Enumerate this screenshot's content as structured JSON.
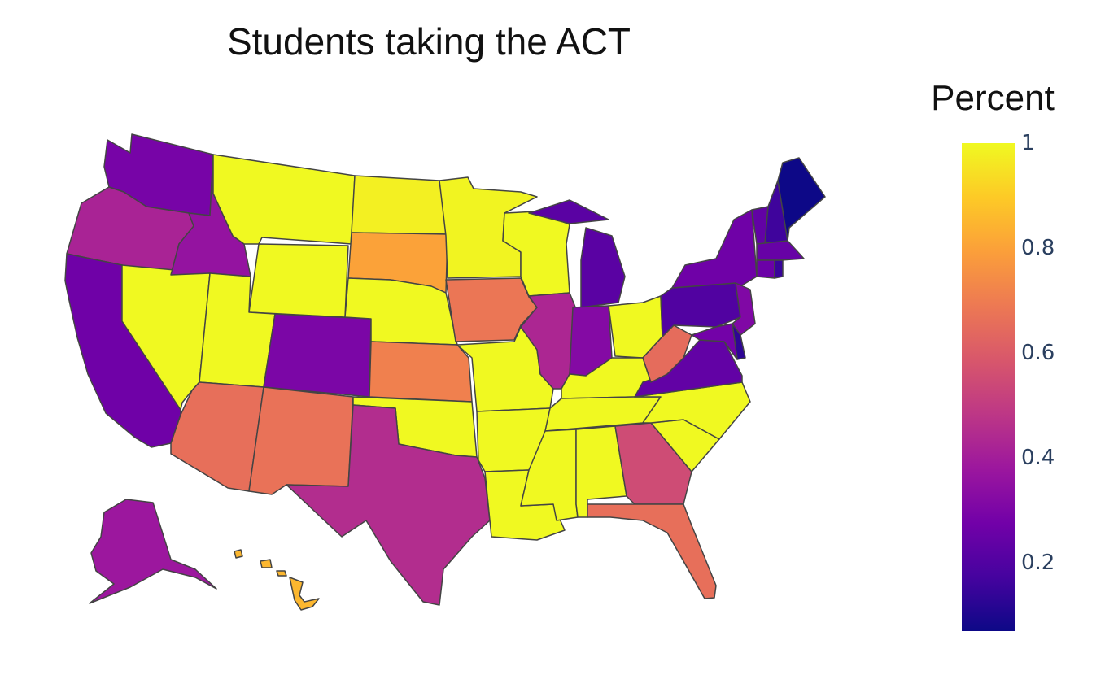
{
  "chart_data": {
    "type": "choropleth",
    "title": "Students taking the ACT",
    "colorbar": {
      "title": "Percent",
      "range": [
        0.07,
        1.0
      ],
      "ticks": [
        "0.2",
        "0.4",
        "0.6",
        "0.8",
        "1"
      ],
      "colorscale": [
        "#0d0887",
        "#46039f",
        "#7201a8",
        "#9c179e",
        "#bd3786",
        "#d8576b",
        "#ed7953",
        "#fb9f3a",
        "#fdca26",
        "#f0f921"
      ]
    },
    "states": [
      {
        "id": "WA",
        "value": 0.29
      },
      {
        "id": "OR",
        "value": 0.42
      },
      {
        "id": "CA",
        "value": 0.27
      },
      {
        "id": "NV",
        "value": 1.0
      },
      {
        "id": "ID",
        "value": 0.36
      },
      {
        "id": "MT",
        "value": 1.0
      },
      {
        "id": "WY",
        "value": 1.0
      },
      {
        "id": "UT",
        "value": 1.0
      },
      {
        "id": "AZ",
        "value": 0.66
      },
      {
        "id": "CO",
        "value": 0.3
      },
      {
        "id": "NM",
        "value": 0.67
      },
      {
        "id": "ND",
        "value": 0.98
      },
      {
        "id": "SD",
        "value": 0.8
      },
      {
        "id": "NE",
        "value": 1.0
      },
      {
        "id": "KS",
        "value": 0.71
      },
      {
        "id": "OK",
        "value": 1.0
      },
      {
        "id": "TX",
        "value": 0.45
      },
      {
        "id": "MN",
        "value": 0.99
      },
      {
        "id": "IA",
        "value": 0.68
      },
      {
        "id": "MO",
        "value": 1.0
      },
      {
        "id": "AR",
        "value": 1.0
      },
      {
        "id": "LA",
        "value": 1.0
      },
      {
        "id": "WI",
        "value": 1.0
      },
      {
        "id": "IL",
        "value": 0.43
      },
      {
        "id": "MI",
        "value": 0.22
      },
      {
        "id": "IN",
        "value": 0.32
      },
      {
        "id": "OH",
        "value": 1.0
      },
      {
        "id": "KY",
        "value": 1.0
      },
      {
        "id": "TN",
        "value": 1.0
      },
      {
        "id": "MS",
        "value": 1.0
      },
      {
        "id": "AL",
        "value": 1.0
      },
      {
        "id": "GA",
        "value": 0.55
      },
      {
        "id": "FL",
        "value": 0.66
      },
      {
        "id": "SC",
        "value": 1.0
      },
      {
        "id": "NC",
        "value": 1.0
      },
      {
        "id": "VA",
        "value": 0.24
      },
      {
        "id": "WV",
        "value": 0.65
      },
      {
        "id": "PA",
        "value": 0.2
      },
      {
        "id": "NY",
        "value": 0.27
      },
      {
        "id": "NJ",
        "value": 0.31
      },
      {
        "id": "DE",
        "value": 0.13
      },
      {
        "id": "MD",
        "value": 0.28
      },
      {
        "id": "VT",
        "value": 0.24
      },
      {
        "id": "NH",
        "value": 0.16
      },
      {
        "id": "MA",
        "value": 0.25
      },
      {
        "id": "CT",
        "value": 0.26
      },
      {
        "id": "RI",
        "value": 0.15
      },
      {
        "id": "ME",
        "value": 0.07
      },
      {
        "id": "AK",
        "value": 0.38
      },
      {
        "id": "HI",
        "value": 0.85
      }
    ]
  }
}
